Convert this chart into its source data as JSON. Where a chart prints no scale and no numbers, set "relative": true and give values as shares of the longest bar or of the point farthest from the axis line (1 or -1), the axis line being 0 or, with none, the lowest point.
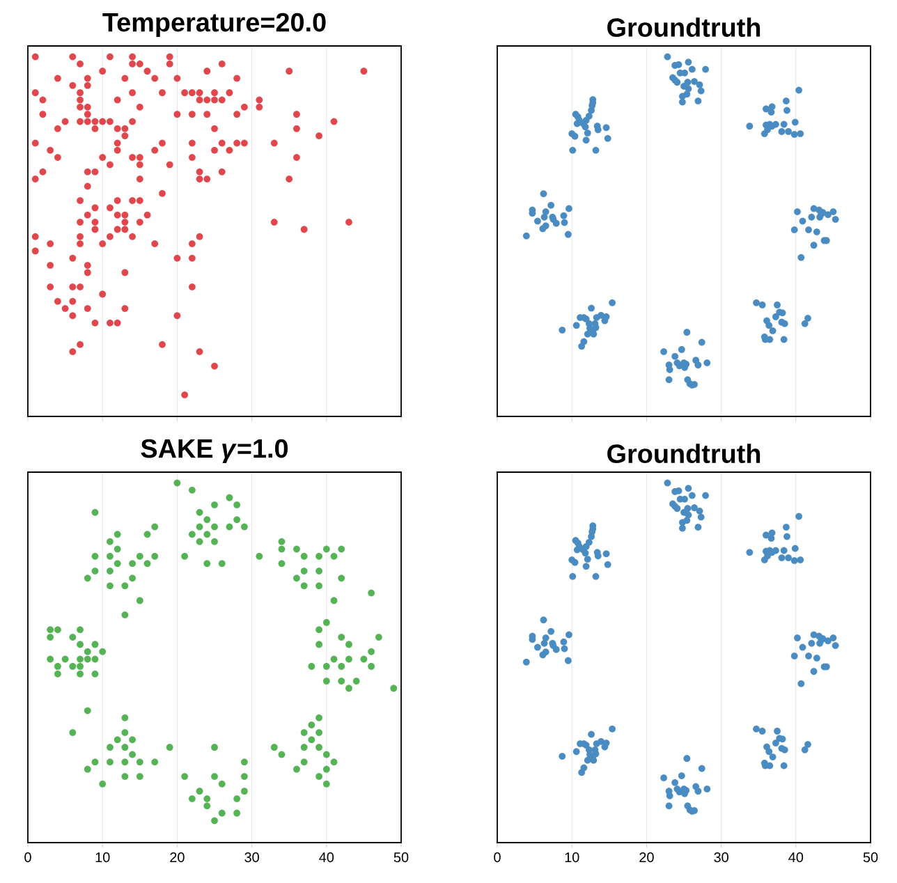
{
  "chart_data": [
    {
      "type": "scatter",
      "title": "Temperature=20.0",
      "color": "#e0474d",
      "marker": "circle",
      "grid": "x",
      "tick_labels": false,
      "relative": true,
      "xlim": [
        0,
        50
      ],
      "xticks": [
        0,
        10,
        20,
        30,
        40,
        50
      ],
      "x": [
        1,
        6,
        11,
        14,
        19,
        7,
        14,
        15,
        19,
        26,
        10,
        16,
        24,
        35,
        45,
        4,
        8,
        13,
        17,
        20,
        28,
        6,
        8,
        1,
        7,
        14,
        18,
        21,
        22,
        23,
        25,
        27,
        2,
        7,
        12,
        23,
        24,
        25,
        26,
        31,
        7,
        8,
        15,
        29,
        31,
        2,
        8,
        20,
        22,
        24,
        28,
        36,
        5,
        7,
        8,
        9,
        10,
        11,
        14,
        41,
        4,
        9,
        12,
        13,
        25,
        36,
        13,
        39,
        1,
        12,
        18,
        22,
        26,
        28,
        29,
        33,
        3,
        12,
        17,
        25,
        27,
        4,
        10,
        14,
        15,
        22,
        36,
        11,
        15,
        19,
        2,
        8,
        9,
        23,
        26,
        1,
        15,
        23,
        24,
        35,
        8,
        18,
        7,
        12,
        14,
        15,
        9,
        11,
        8,
        12,
        13,
        16,
        7,
        9,
        13,
        15,
        33,
        43,
        9,
        12,
        13,
        37,
        1,
        7,
        11,
        14,
        23,
        3,
        7,
        10,
        17,
        22,
        1,
        6,
        20,
        22,
        3,
        8,
        8,
        13,
        3,
        6,
        7,
        22,
        10,
        4,
        6,
        5,
        8,
        13,
        6,
        20,
        9,
        11,
        12,
        7,
        18,
        6,
        23,
        25,
        21
      ],
      "values": [
        1,
        1,
        1,
        1,
        1,
        0.98,
        0.98,
        0.98,
        0.98,
        0.98,
        0.96,
        0.96,
        0.96,
        0.96,
        0.96,
        0.94,
        0.94,
        0.94,
        0.94,
        0.94,
        0.94,
        0.92,
        0.92,
        0.9,
        0.9,
        0.9,
        0.9,
        0.9,
        0.9,
        0.9,
        0.9,
        0.9,
        0.88,
        0.88,
        0.88,
        0.88,
        0.88,
        0.88,
        0.88,
        0.88,
        0.86,
        0.86,
        0.86,
        0.86,
        0.86,
        0.84,
        0.84,
        0.84,
        0.84,
        0.84,
        0.84,
        0.84,
        0.82,
        0.82,
        0.82,
        0.82,
        0.82,
        0.82,
        0.82,
        0.82,
        0.8,
        0.8,
        0.8,
        0.8,
        0.8,
        0.8,
        0.78,
        0.78,
        0.76,
        0.76,
        0.76,
        0.76,
        0.76,
        0.76,
        0.76,
        0.76,
        0.74,
        0.74,
        0.74,
        0.74,
        0.74,
        0.72,
        0.72,
        0.72,
        0.72,
        0.72,
        0.72,
        0.7,
        0.7,
        0.7,
        0.68,
        0.68,
        0.68,
        0.68,
        0.68,
        0.66,
        0.66,
        0.66,
        0.66,
        0.66,
        0.64,
        0.62,
        0.6,
        0.6,
        0.6,
        0.6,
        0.58,
        0.58,
        0.56,
        0.56,
        0.56,
        0.56,
        0.54,
        0.54,
        0.54,
        0.54,
        0.54,
        0.54,
        0.52,
        0.52,
        0.52,
        0.52,
        0.5,
        0.5,
        0.5,
        0.5,
        0.5,
        0.48,
        0.48,
        0.48,
        0.48,
        0.48,
        0.46,
        0.44,
        0.44,
        0.44,
        0.42,
        0.42,
        0.4,
        0.4,
        0.36,
        0.36,
        0.36,
        0.36,
        0.34,
        0.32,
        0.32,
        0.3,
        0.3,
        0.3,
        0.28,
        0.28,
        0.26,
        0.26,
        0.26,
        0.2,
        0.2,
        0.18,
        0.18,
        0.14,
        0.06
      ]
    },
    {
      "type": "scatter",
      "title": "Groundtruth",
      "color": "#4a8cc2",
      "marker": "circle",
      "grid": "x",
      "tick_labels": false,
      "relative": true,
      "xlim": [
        0,
        50
      ],
      "xticks": [
        0,
        10,
        20,
        30,
        40,
        50
      ],
      "x": [
        22.8,
        23.8,
        24.3,
        25.6,
        27.9,
        23.5,
        24.5,
        25.1,
        26.1,
        24.1,
        25.0,
        25.5,
        26.4,
        27.1,
        25.6,
        24.8,
        25.4,
        27.3,
        26.9,
        24.8,
        23.8,
        12.8,
        12.8,
        12.7,
        12.6,
        12.3,
        11.9,
        11.5,
        11.8,
        10.5,
        10.8,
        10.7,
        11.0,
        10.0,
        10.4,
        12.1,
        11.9,
        13.4,
        14.6,
        13.5,
        14.8,
        10.1,
        13.2,
        40.4,
        38.7,
        36.0,
        36.8,
        36.7,
        38.8,
        33.8,
        36.0,
        36.5,
        37.3,
        38.4,
        39.9,
        35.8,
        36.2,
        38.1,
        39.0,
        39.8,
        40.6,
        36.8,
        6.2,
        4.7,
        4.7,
        7.2,
        6.5,
        9.6,
        5.4,
        6.3,
        7.4,
        8.9,
        6.1,
        6.5,
        7.9,
        9.0,
        3.9,
        9.5,
        7.5,
        40.2,
        42.4,
        43.1,
        43.6,
        45.0,
        44.3,
        43.2,
        42.1,
        40.9,
        45.3,
        39.8,
        41.7,
        42.8,
        43.8,
        44.1,
        42.4,
        40.7,
        43.4,
        15.4,
        12.6,
        11.1,
        11.6,
        11.9,
        13.3,
        13.9,
        14.6,
        14.4,
        10.6,
        12.3,
        13.1,
        13.2,
        12.8,
        12.9,
        12.1,
        8.7,
        11.6,
        11.3,
        12.4,
        25.4,
        27.4,
        24.7,
        22.3,
        23.8,
        23.0,
        24.1,
        25.0,
        25.3,
        26.6,
        28.1,
        26.9,
        23.1,
        24.4,
        23.0,
        25.5,
        25.8,
        26.1,
        26.4,
        25.1,
        34.7,
        35.5,
        37.5,
        37.8,
        38.2,
        37.3,
        36.1,
        38.1,
        38.5,
        36.4,
        36.9,
        41.2,
        41.6,
        35.8,
        35.9,
        36.5,
        38.4
      ],
      "values": [
        1,
        0.976,
        0.978,
        0.985,
        0.965,
        0.942,
        0.955,
        0.955,
        0.965,
        0.929,
        0.918,
        0.929,
        0.931,
        0.922,
        0.911,
        0.89,
        0.896,
        0.905,
        0.877,
        0.874,
        0.935,
        0.881,
        0.872,
        0.864,
        0.851,
        0.835,
        0.823,
        0.814,
        0.805,
        0.84,
        0.833,
        0.814,
        0.823,
        0.786,
        0.779,
        0.788,
        0.768,
        0.807,
        0.803,
        0.797,
        0.773,
        0.74,
        0.74,
        0.907,
        0.877,
        0.855,
        0.861,
        0.846,
        0.851,
        0.807,
        0.81,
        0.812,
        0.812,
        0.812,
        0.818,
        0.786,
        0.797,
        0.792,
        0.792,
        0.784,
        0.786,
        0.807,
        0.619,
        0.574,
        0.565,
        0.587,
        0.569,
        0.578,
        0.543,
        0.554,
        0.554,
        0.558,
        0.522,
        0.53,
        0.537,
        0.539,
        0.502,
        0.506,
        0.548,
        0.569,
        0.578,
        0.574,
        0.567,
        0.569,
        0.561,
        0.554,
        0.554,
        0.543,
        0.548,
        0.519,
        0.519,
        0.513,
        0.489,
        0.489,
        0.476,
        0.442,
        0.563,
        0.316,
        0.301,
        0.275,
        0.275,
        0.271,
        0.275,
        0.281,
        0.277,
        0.266,
        0.253,
        0.258,
        0.258,
        0.247,
        0.238,
        0.229,
        0.229,
        0.24,
        0.208,
        0.195,
        0.245,
        0.234,
        0.206,
        0.186,
        0.18,
        0.167,
        0.143,
        0.149,
        0.149,
        0.145,
        0.156,
        0.149,
        0.143,
        0.13,
        0.141,
        0.102,
        0.102,
        0.091,
        0.087,
        0.089,
        0.136,
        0.316,
        0.31,
        0.31,
        0.29,
        0.288,
        0.277,
        0.266,
        0.262,
        0.258,
        0.253,
        0.238,
        0.258,
        0.273,
        0.221,
        0.214,
        0.214,
        0.214
      ]
    },
    {
      "type": "scatter",
      "title": "SAKE *γ*=1.0",
      "color": "#55b255",
      "marker": "circle",
      "grid": "x",
      "tick_labels": "x",
      "relative": true,
      "xlim": [
        0,
        50
      ],
      "xticks": [
        0,
        10,
        20,
        30,
        40,
        50
      ],
      "x": [
        20,
        22,
        27,
        25,
        28,
        9,
        23,
        24,
        28,
        17,
        23,
        25,
        27,
        29,
        12,
        16,
        22,
        24,
        11,
        23,
        25,
        34,
        12,
        34,
        36,
        40,
        42,
        9,
        11,
        15,
        17,
        21,
        31,
        37,
        39,
        41,
        12,
        14,
        16,
        24,
        26,
        34,
        9,
        11,
        37,
        39,
        8,
        14,
        36,
        42,
        11,
        13,
        37,
        39,
        46,
        15,
        41,
        13,
        40,
        3,
        4,
        7,
        39,
        3,
        6,
        42,
        47,
        7,
        9,
        39,
        43,
        8,
        10,
        46,
        3,
        5,
        7,
        8,
        9,
        41,
        43,
        45,
        4,
        6,
        7,
        38,
        40,
        42,
        46,
        4,
        7,
        9,
        40,
        42,
        44,
        43,
        49,
        8,
        13,
        39,
        38,
        6,
        13,
        37,
        39,
        12,
        14,
        38,
        11,
        13,
        19,
        25,
        33,
        37,
        39,
        14,
        34,
        40,
        9,
        11,
        13,
        15,
        17,
        29,
        37,
        41,
        8,
        36,
        40,
        13,
        15,
        21,
        25,
        29,
        39,
        10,
        26,
        40,
        23,
        29,
        22,
        24,
        28,
        24,
        26,
        28,
        25
      ],
      "values": [
        1,
        0.98,
        0.959,
        0.939,
        0.939,
        0.918,
        0.918,
        0.898,
        0.898,
        0.878,
        0.878,
        0.878,
        0.878,
        0.878,
        0.857,
        0.857,
        0.857,
        0.857,
        0.837,
        0.837,
        0.837,
        0.837,
        0.816,
        0.816,
        0.816,
        0.816,
        0.816,
        0.796,
        0.796,
        0.796,
        0.796,
        0.796,
        0.796,
        0.796,
        0.796,
        0.796,
        0.776,
        0.776,
        0.776,
        0.776,
        0.776,
        0.776,
        0.755,
        0.755,
        0.755,
        0.755,
        0.735,
        0.735,
        0.735,
        0.735,
        0.714,
        0.714,
        0.714,
        0.714,
        0.694,
        0.673,
        0.673,
        0.633,
        0.612,
        0.592,
        0.592,
        0.592,
        0.592,
        0.571,
        0.571,
        0.571,
        0.571,
        0.551,
        0.551,
        0.551,
        0.551,
        0.531,
        0.531,
        0.531,
        0.51,
        0.51,
        0.51,
        0.51,
        0.51,
        0.51,
        0.51,
        0.51,
        0.49,
        0.49,
        0.49,
        0.49,
        0.49,
        0.49,
        0.49,
        0.469,
        0.469,
        0.469,
        0.449,
        0.449,
        0.449,
        0.429,
        0.429,
        0.367,
        0.347,
        0.347,
        0.327,
        0.306,
        0.306,
        0.306,
        0.306,
        0.286,
        0.286,
        0.286,
        0.265,
        0.265,
        0.265,
        0.265,
        0.265,
        0.265,
        0.265,
        0.245,
        0.245,
        0.245,
        0.224,
        0.224,
        0.224,
        0.224,
        0.224,
        0.224,
        0.224,
        0.224,
        0.204,
        0.204,
        0.204,
        0.184,
        0.184,
        0.184,
        0.184,
        0.184,
        0.184,
        0.163,
        0.163,
        0.163,
        0.143,
        0.143,
        0.122,
        0.122,
        0.122,
        0.102,
        0.082,
        0.082,
        0.061
      ]
    },
    {
      "type": "scatter",
      "title": "Groundtruth",
      "color": "#4a8cc2",
      "marker": "circle",
      "grid": "x",
      "tick_labels": "x",
      "relative": true,
      "xlim": [
        0,
        50
      ],
      "xticks": [
        0,
        10,
        20,
        30,
        40,
        50
      ],
      "x": [
        22.8,
        23.8,
        24.3,
        25.6,
        27.9,
        23.5,
        24.5,
        25.1,
        26.1,
        24.1,
        25.0,
        25.5,
        26.4,
        27.1,
        25.6,
        24.8,
        25.4,
        27.3,
        26.9,
        24.8,
        23.8,
        12.8,
        12.8,
        12.7,
        12.6,
        12.3,
        11.9,
        11.5,
        11.8,
        10.5,
        10.8,
        10.7,
        11.0,
        10.0,
        10.4,
        12.1,
        11.9,
        13.4,
        14.6,
        13.5,
        14.8,
        10.1,
        13.2,
        40.4,
        38.7,
        36.0,
        36.8,
        36.7,
        38.8,
        33.8,
        36.0,
        36.5,
        37.3,
        38.4,
        39.9,
        35.8,
        36.2,
        38.1,
        39.0,
        39.8,
        40.6,
        36.8,
        6.2,
        4.7,
        4.7,
        7.2,
        6.5,
        9.6,
        5.4,
        6.3,
        7.4,
        8.9,
        6.1,
        6.5,
        7.9,
        9.0,
        3.9,
        9.5,
        7.5,
        40.2,
        42.4,
        43.1,
        43.6,
        45.0,
        44.3,
        43.2,
        42.1,
        40.9,
        45.3,
        39.8,
        41.7,
        42.8,
        43.8,
        44.1,
        42.4,
        40.7,
        43.4,
        15.4,
        12.6,
        11.1,
        11.6,
        11.9,
        13.3,
        13.9,
        14.6,
        14.4,
        10.6,
        12.3,
        13.1,
        13.2,
        12.8,
        12.9,
        12.1,
        8.7,
        11.6,
        11.3,
        12.4,
        25.4,
        27.4,
        24.7,
        22.3,
        23.8,
        23.0,
        24.1,
        25.0,
        25.3,
        26.6,
        28.1,
        26.9,
        23.1,
        24.4,
        23.0,
        25.5,
        25.8,
        26.1,
        26.4,
        25.1,
        34.7,
        35.5,
        37.5,
        37.8,
        38.2,
        37.3,
        36.1,
        38.1,
        38.5,
        36.4,
        36.9,
        41.2,
        41.6,
        35.8,
        35.9,
        36.5,
        38.4
      ],
      "values": [
        1,
        0.976,
        0.978,
        0.985,
        0.965,
        0.942,
        0.955,
        0.955,
        0.965,
        0.929,
        0.918,
        0.929,
        0.931,
        0.922,
        0.911,
        0.89,
        0.896,
        0.905,
        0.877,
        0.874,
        0.935,
        0.881,
        0.872,
        0.864,
        0.851,
        0.835,
        0.823,
        0.814,
        0.805,
        0.84,
        0.833,
        0.814,
        0.823,
        0.786,
        0.779,
        0.788,
        0.768,
        0.807,
        0.803,
        0.797,
        0.773,
        0.74,
        0.74,
        0.907,
        0.877,
        0.855,
        0.861,
        0.846,
        0.851,
        0.807,
        0.81,
        0.812,
        0.812,
        0.812,
        0.818,
        0.786,
        0.797,
        0.792,
        0.792,
        0.784,
        0.786,
        0.807,
        0.619,
        0.574,
        0.565,
        0.587,
        0.569,
        0.578,
        0.543,
        0.554,
        0.554,
        0.558,
        0.522,
        0.53,
        0.537,
        0.539,
        0.502,
        0.506,
        0.548,
        0.569,
        0.578,
        0.574,
        0.567,
        0.569,
        0.561,
        0.554,
        0.554,
        0.543,
        0.548,
        0.519,
        0.519,
        0.513,
        0.489,
        0.489,
        0.476,
        0.442,
        0.563,
        0.316,
        0.301,
        0.275,
        0.275,
        0.271,
        0.275,
        0.281,
        0.277,
        0.266,
        0.253,
        0.258,
        0.258,
        0.247,
        0.238,
        0.229,
        0.229,
        0.24,
        0.208,
        0.195,
        0.245,
        0.234,
        0.206,
        0.186,
        0.18,
        0.167,
        0.143,
        0.149,
        0.149,
        0.145,
        0.156,
        0.149,
        0.143,
        0.13,
        0.141,
        0.102,
        0.102,
        0.091,
        0.087,
        0.089,
        0.136,
        0.316,
        0.31,
        0.31,
        0.29,
        0.288,
        0.277,
        0.266,
        0.262,
        0.258,
        0.253,
        0.238,
        0.258,
        0.273,
        0.221,
        0.214,
        0.214,
        0.214
      ]
    }
  ]
}
